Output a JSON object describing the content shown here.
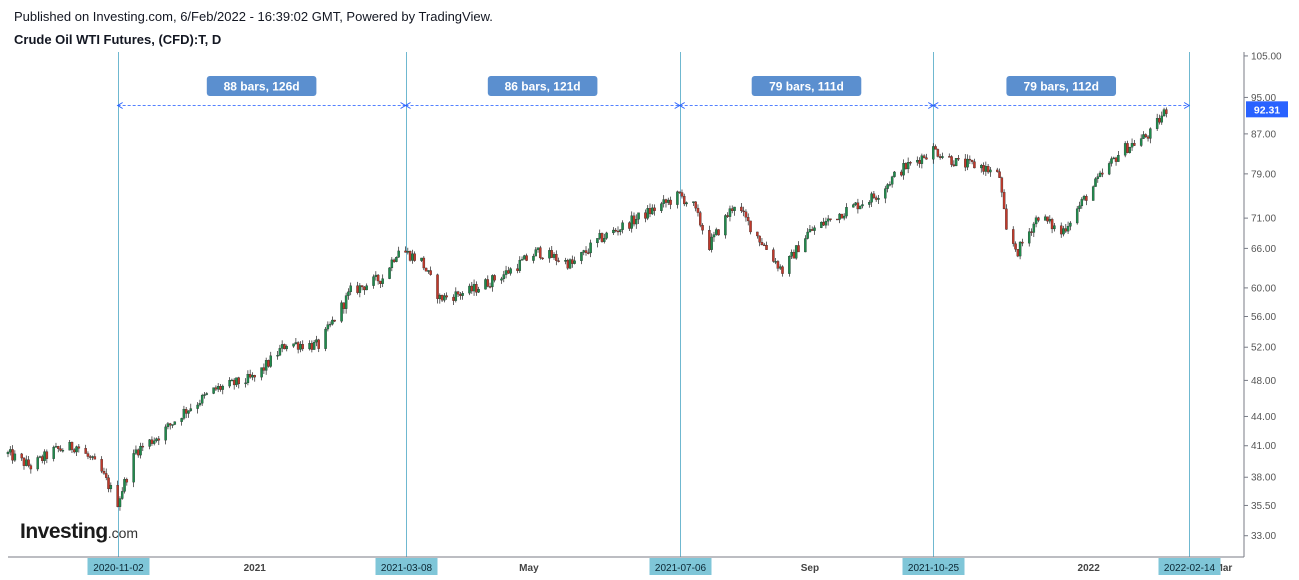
{
  "header": {
    "published_line": "Published on Investing.com, 6/Feb/2022 - 16:39:02 GMT, Powered by TradingView.",
    "title": "Crude Oil WTI Futures, (CFD):T, D"
  },
  "logo": {
    "main": "Investing",
    "suffix": ".com"
  },
  "chart_data": {
    "type": "candlestick",
    "title": "Crude Oil WTI Futures, (CFD):T, D",
    "y_scale": "log",
    "ylim": [
      31.5,
      106
    ],
    "y_ticks": [
      "105.00",
      "95.00",
      "87.00",
      "79.00",
      "71.00",
      "66.00",
      "60.00",
      "56.00",
      "52.00",
      "48.00",
      "44.00",
      "41.00",
      "38.00",
      "35.50",
      "33.00"
    ],
    "x_range": [
      "2020-09-15",
      "2022-03-10"
    ],
    "x_labels": [
      {
        "date": "2021-01-01",
        "label": "2021"
      },
      {
        "date": "2021-05-01",
        "label": "May"
      },
      {
        "date": "2021-09-01",
        "label": "Sep"
      },
      {
        "date": "2022-01-01",
        "label": "2022"
      },
      {
        "date": "2022-03-01",
        "label": "Mar"
      }
    ],
    "markers": [
      {
        "date": "2020-11-02",
        "label": "2020-11-02"
      },
      {
        "date": "2021-03-08",
        "label": "2021-03-08"
      },
      {
        "date": "2021-07-06",
        "label": "2021-07-06"
      },
      {
        "date": "2021-10-25",
        "label": "2021-10-25"
      },
      {
        "date": "2022-02-14",
        "label": "2022-02-14"
      }
    ],
    "measure_level": 93.2,
    "intervals": [
      {
        "from": "2020-11-02",
        "to": "2021-03-08",
        "label": "88 bars, 126d"
      },
      {
        "from": "2021-03-08",
        "to": "2021-07-06",
        "label": "86 bars, 121d"
      },
      {
        "from": "2021-07-06",
        "to": "2021-10-25",
        "label": "79 bars, 111d"
      },
      {
        "from": "2021-10-25",
        "to": "2022-02-14",
        "label": "79 bars, 112d"
      }
    ],
    "last_price": 92.31,
    "last_price_label": "92.31",
    "price_path": [
      [
        "2020-09-15",
        40.2
      ],
      [
        "2020-09-25",
        39.0
      ],
      [
        "2020-10-05",
        40.5
      ],
      [
        "2020-10-15",
        41.0
      ],
      [
        "2020-10-25",
        38.8
      ],
      [
        "2020-11-02",
        35.8
      ],
      [
        "2020-11-10",
        40.5
      ],
      [
        "2020-11-20",
        42.0
      ],
      [
        "2020-12-01",
        44.5
      ],
      [
        "2020-12-15",
        47.0
      ],
      [
        "2021-01-01",
        48.3
      ],
      [
        "2021-01-15",
        52.5
      ],
      [
        "2021-01-29",
        52.2
      ],
      [
        "2021-02-12",
        59.5
      ],
      [
        "2021-02-26",
        61.5
      ],
      [
        "2021-03-05",
        66.0
      ],
      [
        "2021-03-15",
        64.0
      ],
      [
        "2021-03-23",
        58.5
      ],
      [
        "2021-04-05",
        59.5
      ],
      [
        "2021-04-20",
        62.0
      ],
      [
        "2021-05-05",
        65.5
      ],
      [
        "2021-05-20",
        63.5
      ],
      [
        "2021-06-01",
        67.5
      ],
      [
        "2021-06-20",
        71.5
      ],
      [
        "2021-07-06",
        75.0
      ],
      [
        "2021-07-12",
        73.0
      ],
      [
        "2021-07-19",
        66.5
      ],
      [
        "2021-07-30",
        73.5
      ],
      [
        "2021-08-10",
        67.5
      ],
      [
        "2021-08-20",
        62.5
      ],
      [
        "2021-08-31",
        68.5
      ],
      [
        "2021-09-15",
        72.0
      ],
      [
        "2021-09-30",
        75.0
      ],
      [
        "2021-10-10",
        79.5
      ],
      [
        "2021-10-25",
        83.8
      ],
      [
        "2021-11-05",
        81.0
      ],
      [
        "2021-11-15",
        80.5
      ],
      [
        "2021-11-23",
        78.5
      ],
      [
        "2021-11-26",
        68.5
      ],
      [
        "2021-12-01",
        65.5
      ],
      [
        "2021-12-10",
        71.5
      ],
      [
        "2021-12-20",
        68.5
      ],
      [
        "2022-01-01",
        75.5
      ],
      [
        "2022-01-15",
        83.5
      ],
      [
        "2022-01-28",
        87.0
      ],
      [
        "2022-02-04",
        92.3
      ]
    ]
  }
}
